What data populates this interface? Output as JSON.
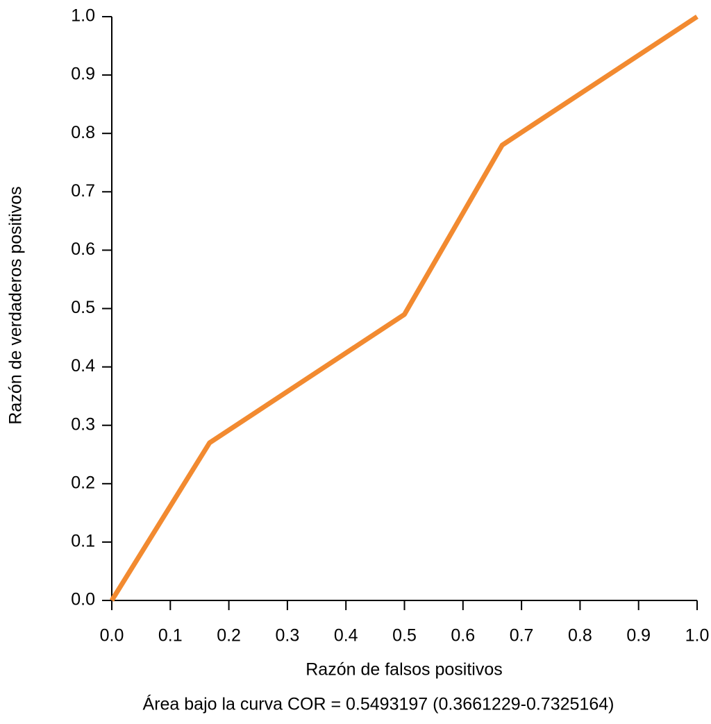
{
  "chart_data": {
    "type": "line",
    "x_label": "Razón de falsos positivos",
    "y_label": "Razón de verdaderos positivos",
    "annotation": "Área bajo la curva COR = 0.5493197 (0.3661229-0.7325164)",
    "x": [
      0,
      0.167,
      0.5,
      0.667,
      1
    ],
    "series": [
      {
        "name": null,
        "color": "#f28a30",
        "values": [
          0,
          0.27,
          0.49,
          0.78,
          1
        ]
      }
    ],
    "xlim": [
      0,
      1
    ],
    "ylim": [
      0,
      1
    ],
    "xticks": [
      {
        "value": 0,
        "label": "0.0"
      },
      0.1,
      0.2,
      0.3,
      0.4,
      0.5,
      0.6,
      0.7,
      0.8,
      0.9,
      {
        "value": 1,
        "label": "1.0"
      }
    ],
    "yticks": [
      {
        "value": 0,
        "label": "0.0"
      },
      0.1,
      0.2,
      0.3,
      0.4,
      0.5,
      0.6,
      0.7,
      0.8,
      0.9,
      {
        "value": 1,
        "label": "1.0"
      }
    ],
    "grid": false
  }
}
